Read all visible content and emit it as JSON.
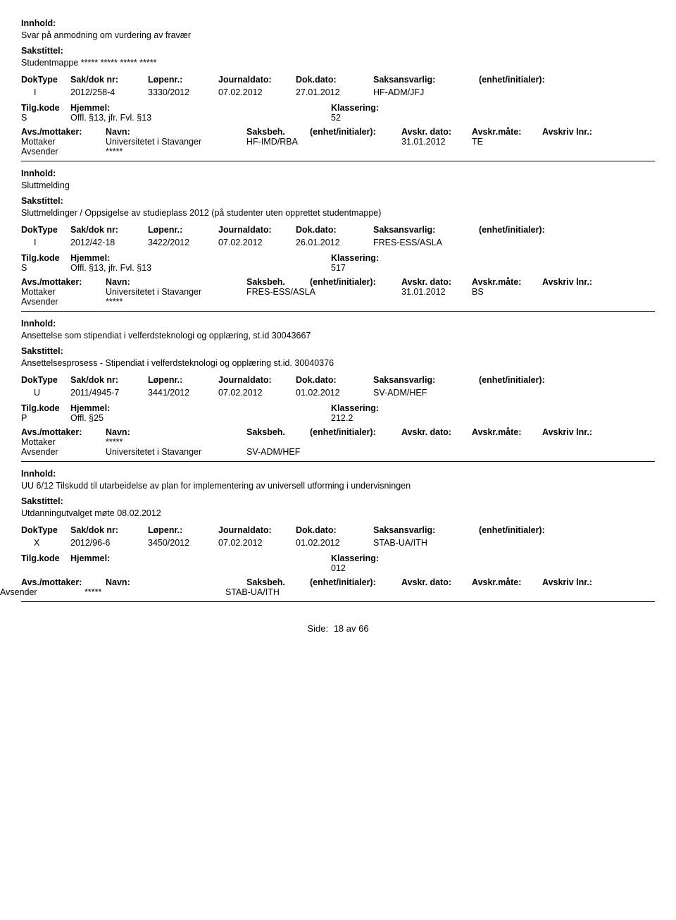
{
  "labels": {
    "innhold": "Innhold:",
    "sakstittel": "Sakstittel:",
    "doktype": "DokType",
    "sakdok": "Sak/dok nr:",
    "lopenr": "Løpenr.:",
    "journaldato": "Journaldato:",
    "dokdato": "Dok.dato:",
    "saksansvarlig": "Saksansvarlig:",
    "enhet": "(enhet/initialer):",
    "tilgkode": "Tilg.kode",
    "hjemmel": "Hjemmel:",
    "klassering": "Klassering:",
    "avsmottaker": "Avs./mottaker:",
    "navn": "Navn:",
    "saksbeh": "Saksbeh.",
    "enhet2": "(enhet/initialer):",
    "avskrdato": "Avskr. dato:",
    "avskrmate": "Avskr.måte:",
    "avskrivlnr": "Avskriv lnr.:",
    "mottaker": "Mottaker",
    "avsender": "Avsender",
    "side": "Side:",
    "pageinfo": "18 av  66"
  },
  "records": [
    {
      "innhold": "Svar på anmodning om vurdering av fravær",
      "sakstittel": "Studentmappe ***** ***** ***** *****",
      "doktype": "I",
      "sakdok": "2012/258-4",
      "lopenr": "3330/2012",
      "journaldato": "07.02.2012",
      "dokdato": "27.01.2012",
      "saksansvarlig": "HF-ADM/JFJ",
      "enhet": "",
      "tilgkode": "S",
      "hjemmel": "Offl. §13, jfr. Fvl. §13",
      "klassering": "52",
      "parties": [
        {
          "role": "Mottaker",
          "navn": "Universitetet i Stavanger",
          "unit": "HF-IMD/RBA",
          "date": "31.01.2012",
          "mate": "TE",
          "lnr": ""
        },
        {
          "role": "Avsender",
          "navn": "*****",
          "unit": "",
          "date": "",
          "mate": "",
          "lnr": ""
        }
      ]
    },
    {
      "innhold": "Sluttmelding",
      "sakstittel": "Sluttmeldinger / Oppsigelse av studieplass 2012 (på studenter uten opprettet studentmappe)",
      "doktype": "I",
      "sakdok": "2012/42-18",
      "lopenr": "3422/2012",
      "journaldato": "07.02.2012",
      "dokdato": "26.01.2012",
      "saksansvarlig": "FRES-ESS/ASLA",
      "enhet": "",
      "tilgkode": "S",
      "hjemmel": "Offl. §13, jfr. Fvl. §13",
      "klassering": "517",
      "parties": [
        {
          "role": "Mottaker",
          "navn": "Universitetet i Stavanger",
          "unit": "FRES-ESS/ASLA",
          "date": "31.01.2012",
          "mate": "BS",
          "lnr": ""
        },
        {
          "role": "Avsender",
          "navn": "*****",
          "unit": "",
          "date": "",
          "mate": "",
          "lnr": ""
        }
      ]
    },
    {
      "innhold": "Ansettelse som stipendiat i velferdsteknologi og opplæring, st.id 30043667",
      "sakstittel": "Ansettelsesprosess - Stipendiat i velferdsteknologi og opplæring st.id. 30040376",
      "doktype": "U",
      "sakdok": "2011/4945-7",
      "lopenr": "3441/2012",
      "journaldato": "07.02.2012",
      "dokdato": "01.02.2012",
      "saksansvarlig": "SV-ADM/HEF",
      "enhet": "",
      "tilgkode": "P",
      "hjemmel": "Offl. §25",
      "klassering": "212.2",
      "parties": [
        {
          "role": "Mottaker",
          "navn": "*****",
          "unit": "",
          "date": "",
          "mate": "",
          "lnr": ""
        },
        {
          "role": "Avsender",
          "navn": "Universitetet i Stavanger",
          "unit": "SV-ADM/HEF",
          "date": "",
          "mate": "",
          "lnr": ""
        }
      ]
    },
    {
      "innhold": "UU 6/12 Tilskudd til utarbeidelse av plan for implementering av universell utforming i undervisningen",
      "sakstittel": "Utdanningutvalget møte 08.02.2012",
      "doktype": "X",
      "sakdok": "2012/96-6",
      "lopenr": "3450/2012",
      "journaldato": "07.02.2012",
      "dokdato": "01.02.2012",
      "saksansvarlig": "STAB-UA/ITH",
      "enhet": "",
      "tilgkode": "",
      "hjemmel": "",
      "klassering": "012",
      "parties": [
        {
          "role": "Avsender",
          "navn": "*****",
          "unit": "STAB-UA/ITH",
          "date": "",
          "mate": "",
          "lnr": ""
        }
      ],
      "avsenderOutdent": true
    }
  ]
}
